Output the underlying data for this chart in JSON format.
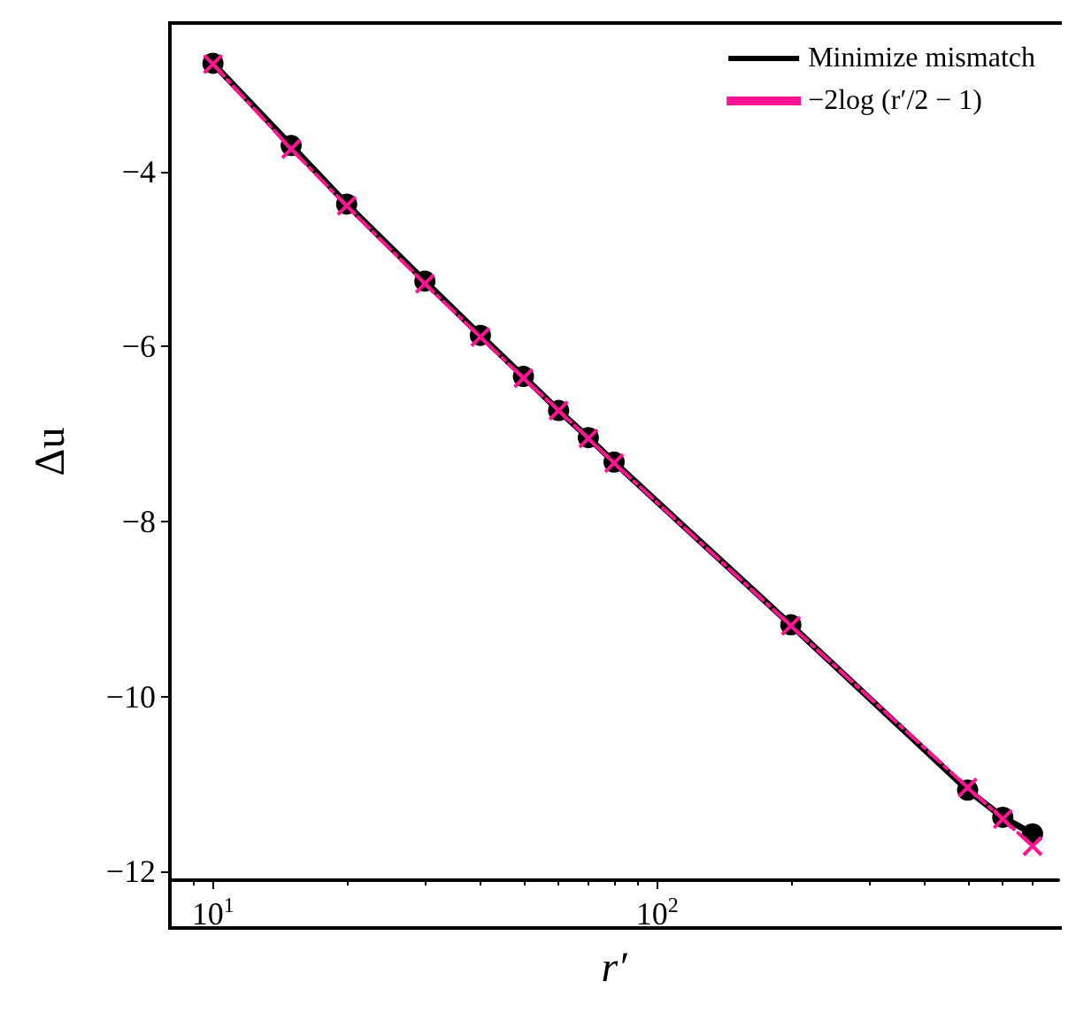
{
  "chart_data": {
    "type": "line",
    "xlabel": "r′",
    "ylabel": "Δu",
    "log": "x",
    "xlim": [
      8,
      800
    ],
    "xticks": [
      {
        "value": 10,
        "label": "10$^{1}$"
      },
      {
        "value": 100,
        "label": "10$^{2}$"
      }
    ],
    "ylim": [
      -12.1,
      -2.3
    ],
    "yticks": [
      -12,
      -10,
      -8,
      -6,
      -4
    ],
    "legend": "top right",
    "grid": false,
    "x": [
      10,
      15,
      20,
      30,
      40,
      50,
      60,
      70,
      80,
      200,
      500,
      600,
      700
    ],
    "series": [
      {
        "name": "Minimize mismatch",
        "color": "#000000",
        "marker": "circle",
        "line_style": "solid",
        "values": [
          -2.76,
          -3.7,
          -4.37,
          -5.25,
          -5.87,
          -6.34,
          -6.73,
          -7.04,
          -7.32,
          -9.18,
          -11.07,
          -11.38,
          -11.57
        ]
      },
      {
        "name": "−2log (r′/2 − 1)",
        "color": "#ff1493",
        "marker": "cross",
        "line_style": "dashed",
        "values": [
          -2.77,
          -3.74,
          -4.39,
          -5.28,
          -5.89,
          -6.36,
          -6.73,
          -7.05,
          -7.33,
          -9.19,
          -11.04,
          -11.4,
          -11.71
        ]
      }
    ]
  }
}
